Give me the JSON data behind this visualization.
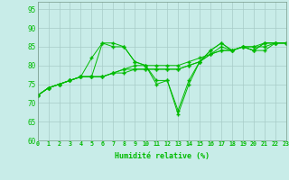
{
  "xlabel": "Humidité relative (%)",
  "xlim": [
    0,
    23
  ],
  "ylim": [
    60,
    97
  ],
  "yticks": [
    60,
    65,
    70,
    75,
    80,
    85,
    90,
    95
  ],
  "xticks": [
    0,
    1,
    2,
    3,
    4,
    5,
    6,
    7,
    8,
    9,
    10,
    11,
    12,
    13,
    14,
    15,
    16,
    17,
    18,
    19,
    20,
    21,
    22,
    23
  ],
  "background_color": "#c8ece8",
  "grid_color": "#a8ccc8",
  "line_color": "#00bb00",
  "figsize": [
    3.2,
    2.0
  ],
  "dpi": 100,
  "lines": [
    [
      72,
      74,
      75,
      76,
      77,
      82,
      86,
      86,
      85,
      81,
      80,
      75,
      76,
      67,
      75,
      81,
      84,
      86,
      84,
      85,
      84,
      86,
      86,
      86
    ],
    [
      72,
      74,
      75,
      76,
      77,
      77,
      86,
      85,
      85,
      81,
      80,
      76,
      76,
      68,
      76,
      81,
      84,
      86,
      84,
      85,
      84,
      86,
      86,
      86
    ],
    [
      72,
      74,
      75,
      76,
      77,
      77,
      77,
      78,
      79,
      80,
      80,
      80,
      80,
      80,
      81,
      82,
      83,
      85,
      84,
      85,
      85,
      86,
      86,
      86
    ],
    [
      72,
      74,
      75,
      76,
      77,
      77,
      77,
      78,
      78,
      79,
      79,
      79,
      79,
      79,
      80,
      81,
      83,
      84,
      84,
      85,
      84,
      84,
      86,
      86
    ],
    [
      72,
      74,
      75,
      76,
      77,
      77,
      77,
      78,
      79,
      79,
      79,
      79,
      79,
      79,
      80,
      81,
      83,
      84,
      84,
      85,
      85,
      85,
      86,
      86
    ]
  ]
}
